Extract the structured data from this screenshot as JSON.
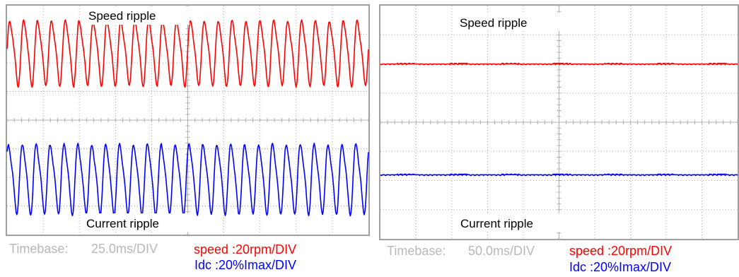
{
  "panels": [
    {
      "top_label": "Speed ripple",
      "bottom_label": "Current ripple",
      "timebase_label": "Timebase:",
      "timebase_value": "25.0ms/DIV",
      "speed_scale": "speed :20rpm/DIV",
      "idc_scale": "Idc :20%Imax/DIV"
    },
    {
      "top_label": "Speed ripple",
      "bottom_label": "Current ripple",
      "timebase_label": "Timebase:",
      "timebase_value": "50.0ms/DIV",
      "speed_scale": "speed :20rpm/DIV",
      "idc_scale": "Idc :20%Imax/DIV"
    }
  ],
  "colors": {
    "speed": "#ff0000",
    "current": "#0000ff",
    "frame": "#a0a0a0",
    "grid": "#b0b0b0"
  },
  "chart_data": [
    {
      "type": "line",
      "grid": "dotted 10x8 divisions",
      "x_divisions": 10,
      "y_divisions": 8,
      "series": [
        {
          "name": "speed",
          "color": "#ff0000",
          "offset_div": 2.4,
          "pp_div": 2.6,
          "cycles": 26
        },
        {
          "name": "Idc",
          "color": "#0000ff",
          "offset_div": -2.0,
          "pp_div": 2.8,
          "cycles": 26
        }
      ]
    },
    {
      "type": "line",
      "grid": "dotted 10x8 divisions",
      "x_divisions": 10,
      "y_divisions": 8,
      "series": [
        {
          "name": "speed",
          "color": "#ff0000",
          "offset_div": 2.0,
          "pp_div": 0.05,
          "cycles": 0
        },
        {
          "name": "Idc",
          "color": "#0000ff",
          "offset_div": -1.8,
          "pp_div": 0.05,
          "cycles": 0
        }
      ]
    }
  ]
}
